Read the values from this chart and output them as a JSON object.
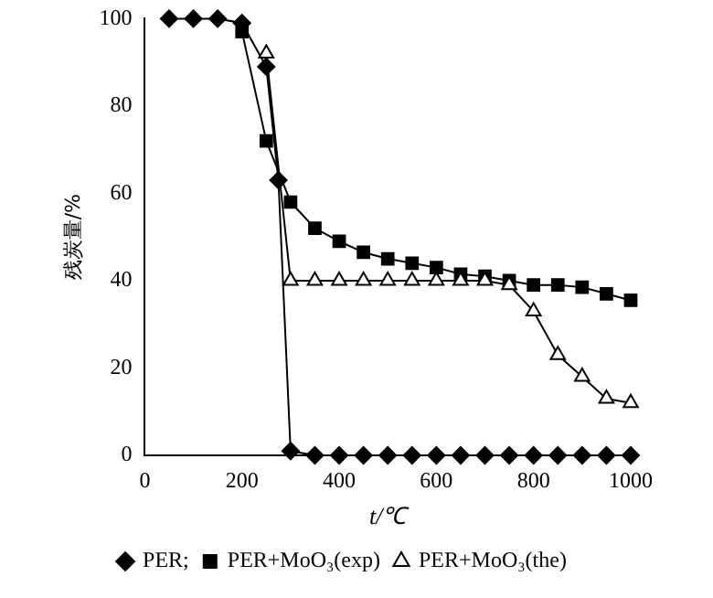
{
  "chart_data": {
    "type": "line",
    "xlabel": "t/℃",
    "ylabel": "残炭量/%",
    "xlim": [
      0,
      1000
    ],
    "xticks": [
      0,
      200,
      400,
      600,
      800,
      1000
    ],
    "ylim": [
      0,
      100
    ],
    "yticks": [
      0,
      20,
      40,
      60,
      80,
      100
    ],
    "grid": false,
    "legend": "bottom",
    "series": [
      {
        "name": "PER;",
        "color": "#000000",
        "marker": "diamond",
        "x": [
          50,
          100,
          150,
          200,
          250,
          275,
          300,
          350,
          400,
          450,
          500,
          550,
          600,
          650,
          700,
          750,
          800,
          850,
          900,
          950,
          1000
        ],
        "values": [
          100,
          100,
          100,
          99,
          89,
          63,
          1,
          0,
          0,
          0,
          0,
          0,
          0,
          0,
          0,
          0,
          0,
          0,
          0,
          0,
          0
        ]
      },
      {
        "name": "PER+MoO₃(exp)",
        "color": "#000000",
        "marker": "square",
        "x": [
          200,
          250,
          300,
          350,
          400,
          450,
          500,
          550,
          600,
          650,
          700,
          750,
          800,
          850,
          900,
          950,
          1000
        ],
        "values": [
          97,
          72,
          58,
          52,
          49,
          46.5,
          45,
          44,
          43,
          41.5,
          41,
          40,
          39,
          39,
          38.5,
          37,
          35.5
        ]
      },
      {
        "name": "PER+MoO₃(the)",
        "color": "#000000",
        "marker": "triangle",
        "x": [
          250,
          300,
          350,
          400,
          450,
          500,
          550,
          600,
          650,
          700,
          750,
          800,
          850,
          900,
          950,
          1000
        ],
        "values": [
          92,
          40,
          40,
          40,
          40,
          40,
          40,
          40,
          40,
          40,
          39,
          33,
          23,
          18,
          13,
          12
        ]
      }
    ]
  }
}
